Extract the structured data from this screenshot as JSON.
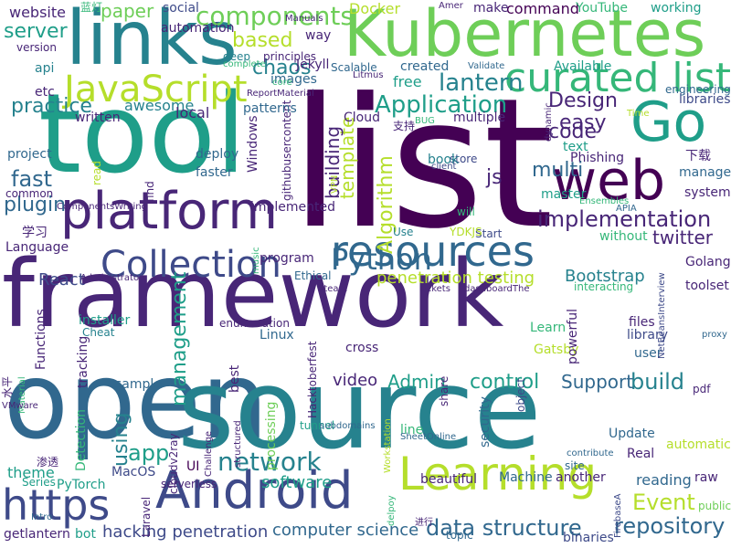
{
  "palette": {
    "dark_purple": "#440154",
    "indigo": "#482677",
    "blue_purple": "#3e4a89",
    "steel_blue": "#31688e",
    "teal": "#26828e",
    "sea_green": "#1f9e89",
    "green": "#35b779",
    "lime_green": "#6ece58",
    "yellow_green": "#b5de2b",
    "yellow": "#fde725"
  },
  "words": [
    {
      "text": "framework",
      "color": "indigo"
    },
    {
      "text": "list",
      "color": "dark_purple"
    },
    {
      "text": "tool",
      "color": "sea_green"
    },
    {
      "text": "open",
      "color": "steel_blue"
    },
    {
      "text": "source",
      "color": "teal"
    },
    {
      "text": "Kubernetes",
      "color": "lime_green"
    },
    {
      "text": "links",
      "color": "teal"
    },
    {
      "text": "web",
      "color": "dark_purple"
    },
    {
      "text": "platform",
      "color": "indigo"
    },
    {
      "text": "Android",
      "color": "blue_purple"
    },
    {
      "text": "resources",
      "color": "steel_blue"
    },
    {
      "text": "Learning",
      "color": "yellow_green"
    },
    {
      "text": "Go",
      "color": "sea_green"
    },
    {
      "text": "curated list",
      "color": "green"
    },
    {
      "text": "JavaScript",
      "color": "yellow_green"
    },
    {
      "text": "https",
      "color": "blue_purple"
    },
    {
      "text": "Collection",
      "color": "blue_purple"
    },
    {
      "text": "Python",
      "color": "steel_blue"
    },
    {
      "text": "Application",
      "color": "sea_green"
    },
    {
      "text": "components",
      "color": "lime_green"
    },
    {
      "text": "lantern",
      "color": "teal"
    },
    {
      "text": "implementation",
      "color": "indigo"
    },
    {
      "text": "network",
      "color": "teal"
    },
    {
      "text": "repository",
      "color": "steel_blue"
    },
    {
      "text": "Event",
      "color": "yellow_green"
    },
    {
      "text": "data structure",
      "color": "steel_blue"
    },
    {
      "text": "build",
      "color": "teal"
    },
    {
      "text": "Design",
      "color": "indigo"
    },
    {
      "text": "server",
      "color": "sea_green"
    },
    {
      "text": "based",
      "color": "yellow_green"
    },
    {
      "text": "chaos",
      "color": "teal"
    },
    {
      "text": "practice",
      "color": "teal"
    },
    {
      "text": "fast",
      "color": "steel_blue"
    },
    {
      "text": "plugin",
      "color": "steel_blue"
    },
    {
      "text": "app",
      "color": "sea_green"
    },
    {
      "text": "Docker",
      "color": "yellow_green"
    },
    {
      "text": "paper",
      "color": "lime_green"
    },
    {
      "text": "code",
      "color": "indigo"
    },
    {
      "text": "multi",
      "color": "steel_blue"
    },
    {
      "text": "easy",
      "color": "indigo"
    },
    {
      "text": "js",
      "color": "indigo"
    },
    {
      "text": "twitter",
      "color": "indigo"
    },
    {
      "text": "control",
      "color": "sea_green"
    },
    {
      "text": "Admin",
      "color": "sea_green"
    },
    {
      "text": "Support",
      "color": "steel_blue"
    },
    {
      "text": "video",
      "color": "indigo"
    },
    {
      "text": "theme",
      "color": "sea_green"
    },
    {
      "text": "computer science",
      "color": "steel_blue"
    },
    {
      "text": "hacking penetration",
      "color": "blue_purple"
    },
    {
      "text": "penetration testing",
      "color": "yellow_green"
    },
    {
      "text": "Bootstrap",
      "color": "teal"
    },
    {
      "text": "React",
      "color": "blue_purple"
    },
    {
      "text": "Algorithm",
      "color": "yellow_green"
    },
    {
      "text": "template",
      "color": "yellow_green"
    },
    {
      "text": "building",
      "color": "indigo"
    },
    {
      "text": "management",
      "color": "sea_green"
    },
    {
      "text": "software",
      "color": "sea_green"
    },
    {
      "text": "using",
      "color": "teal"
    },
    {
      "text": "UI",
      "color": "dark_purple"
    },
    {
      "text": "reading",
      "color": "steel_blue"
    },
    {
      "text": "website",
      "color": "indigo"
    },
    {
      "text": "command",
      "color": "dark_purple"
    },
    {
      "text": "make",
      "color": "indigo"
    },
    {
      "text": "working",
      "color": "sea_green"
    },
    {
      "text": "YouTube",
      "color": "green"
    },
    {
      "text": "social",
      "color": "blue_purple"
    },
    {
      "text": "api",
      "color": "teal"
    },
    {
      "text": "etc",
      "color": "indigo"
    },
    {
      "text": "free",
      "color": "sea_green"
    },
    {
      "text": "awesome",
      "color": "teal"
    },
    {
      "text": "local",
      "color": "indigo"
    },
    {
      "text": "text",
      "color": "sea_green"
    },
    {
      "text": "store",
      "color": "blue_purple"
    },
    {
      "text": "book",
      "color": "teal"
    },
    {
      "text": "Phishing",
      "color": "indigo"
    },
    {
      "text": "下载",
      "color": "indigo"
    },
    {
      "text": "manage",
      "color": "steel_blue"
    },
    {
      "text": "master",
      "color": "sea_green"
    },
    {
      "text": "system",
      "color": "indigo"
    },
    {
      "text": "deploy",
      "color": "steel_blue"
    },
    {
      "text": "faster",
      "color": "steel_blue"
    },
    {
      "text": "Windows",
      "color": "indigo"
    },
    {
      "text": "githubusercontent",
      "color": "indigo"
    },
    {
      "text": "implemented",
      "color": "indigo"
    },
    {
      "text": "libraries",
      "color": "blue_purple"
    },
    {
      "text": "created",
      "color": "steel_blue"
    },
    {
      "text": "Available",
      "color": "sea_green"
    },
    {
      "text": "written",
      "color": "indigo"
    },
    {
      "text": "patterns",
      "color": "steel_blue"
    },
    {
      "text": "multiple",
      "color": "indigo"
    },
    {
      "text": "Cloud",
      "color": "indigo"
    },
    {
      "text": "common",
      "color": "indigo"
    },
    {
      "text": "project",
      "color": "steel_blue"
    },
    {
      "text": "Language",
      "color": "indigo"
    },
    {
      "text": "学习",
      "color": "indigo"
    },
    {
      "text": "PyTorch",
      "color": "sea_green"
    },
    {
      "text": "MacOS",
      "color": "blue_purple"
    },
    {
      "text": "serverless",
      "color": "indigo"
    },
    {
      "text": "Series",
      "color": "sea_green"
    },
    {
      "text": "getlantern",
      "color": "indigo"
    },
    {
      "text": "bot",
      "color": "sea_green"
    },
    {
      "text": "Laravel",
      "color": "indigo"
    },
    {
      "text": "Detection",
      "color": "green"
    },
    {
      "text": "processing",
      "color": "lime_green"
    },
    {
      "text": "Linux",
      "color": "steel_blue"
    },
    {
      "text": "cross",
      "color": "indigo"
    },
    {
      "text": "Learn",
      "color": "green"
    },
    {
      "text": "Gatsby",
      "color": "yellow_green"
    },
    {
      "text": "powerful",
      "color": "indigo"
    },
    {
      "text": "library",
      "color": "blue_purple"
    },
    {
      "text": "files",
      "color": "indigo"
    },
    {
      "text": "user",
      "color": "steel_blue"
    },
    {
      "text": "toolset",
      "color": "indigo"
    },
    {
      "text": "Golang",
      "color": "indigo"
    },
    {
      "text": "proxy",
      "color": "steel_blue"
    },
    {
      "text": "pdf",
      "color": "indigo"
    },
    {
      "text": "Update",
      "color": "steel_blue"
    },
    {
      "text": "site",
      "color": "steel_blue"
    },
    {
      "text": "line",
      "color": "green"
    },
    {
      "text": "security",
      "color": "steel_blue"
    },
    {
      "text": "object",
      "color": "blue_purple"
    },
    {
      "text": "share",
      "color": "indigo"
    },
    {
      "text": "Real",
      "color": "indigo"
    },
    {
      "text": "automatic",
      "color": "yellow_green"
    },
    {
      "text": "Machine",
      "color": "steel_blue"
    },
    {
      "text": "another",
      "color": "indigo"
    },
    {
      "text": "raw",
      "color": "indigo"
    },
    {
      "text": "public",
      "color": "lime_green"
    },
    {
      "text": "beautiful",
      "color": "indigo"
    },
    {
      "text": "binaries",
      "color": "blue_purple"
    },
    {
      "text": "topic",
      "color": "steel_blue"
    },
    {
      "text": "best",
      "color": "indigo"
    },
    {
      "text": "sample",
      "color": "steel_blue"
    },
    {
      "text": "cloudv2ray",
      "color": "indigo"
    },
    {
      "text": "Hacktoberfest",
      "color": "indigo"
    },
    {
      "text": "Functions",
      "color": "indigo"
    },
    {
      "text": "installer",
      "color": "sea_green"
    },
    {
      "text": "Cheat",
      "color": "teal"
    },
    {
      "text": "Ethical",
      "color": "steel_blue"
    },
    {
      "text": "enumeration",
      "color": "indigo"
    },
    {
      "text": "Steam",
      "color": "indigo"
    },
    {
      "text": "tickets",
      "color": "indigo"
    },
    {
      "text": "dashboardThe",
      "color": "indigo"
    },
    {
      "text": "interacting",
      "color": "green"
    },
    {
      "text": "NetBeansInterview",
      "color": "blue_purple"
    },
    {
      "text": "Administrator",
      "color": "indigo"
    },
    {
      "text": "program",
      "color": "indigo"
    },
    {
      "text": "music",
      "color": "green"
    },
    {
      "text": "without",
      "color": "green"
    },
    {
      "text": "Start",
      "color": "blue_purple"
    },
    {
      "text": "will",
      "color": "green"
    },
    {
      "text": "Use",
      "color": "teal"
    },
    {
      "text": "YDKJS",
      "color": "yellow_green"
    },
    {
      "text": "APIA",
      "color": "steel_blue"
    },
    {
      "text": "Ensembles",
      "color": "green"
    },
    {
      "text": "images",
      "color": "steel_blue"
    },
    {
      "text": "deep",
      "color": "teal"
    },
    {
      "text": "principles",
      "color": "indigo"
    },
    {
      "text": "Jekyll",
      "color": "indigo"
    },
    {
      "text": "way",
      "color": "indigo"
    },
    {
      "text": "Scalable",
      "color": "steel_blue"
    },
    {
      "text": "Manuals",
      "color": "indigo"
    },
    {
      "text": "Amer",
      "color": "indigo"
    },
    {
      "text": "蓝灯",
      "color": "green"
    },
    {
      "text": "automation",
      "color": "indigo"
    },
    {
      "text": "version",
      "color": "indigo"
    },
    {
      "text": "complete",
      "color": "green"
    },
    {
      "text": "core",
      "color": "green"
    },
    {
      "text": "Litmus",
      "color": "indigo"
    },
    {
      "text": "Validate",
      "color": "steel_blue"
    },
    {
      "text": "ReportMaterial",
      "color": "indigo"
    },
    {
      "text": "支持",
      "color": "indigo"
    },
    {
      "text": "BUG",
      "color": "green"
    },
    {
      "text": "dynamic",
      "color": "indigo"
    },
    {
      "text": "Time",
      "color": "yellow_green"
    },
    {
      "text": "engineering",
      "color": "steel_blue"
    },
    {
      "text": "read",
      "color": "yellow_green"
    },
    {
      "text": "find",
      "color": "indigo"
    },
    {
      "text": "VPN",
      "color": "yellow_green"
    },
    {
      "text": "client",
      "color": "blue_purple"
    },
    {
      "text": "ComponentsWriting",
      "color": "indigo"
    },
    {
      "text": "水平",
      "color": "indigo"
    },
    {
      "text": "Material",
      "color": "green"
    },
    {
      "text": "tracking",
      "color": "indigo"
    },
    {
      "text": "VMware",
      "color": "indigo"
    },
    {
      "text": "渗透",
      "color": "indigo"
    },
    {
      "text": "Intro",
      "color": "steel_blue"
    },
    {
      "text": "structured",
      "color": "indigo"
    },
    {
      "text": "Challenge",
      "color": "indigo"
    },
    {
      "text": "tunnel",
      "color": "sea_green"
    },
    {
      "text": "subdomains",
      "color": "steel_blue"
    },
    {
      "text": "Workstation",
      "color": "yellow_green"
    },
    {
      "text": "SheetOnline",
      "color": "steel_blue"
    },
    {
      "text": "contribute",
      "color": "steel_blue"
    },
    {
      "text": "delpoy",
      "color": "green"
    },
    {
      "text": "进行",
      "color": "indigo"
    },
    {
      "text": "FirebaseA",
      "color": "blue_purple"
    },
    {
      "text": "实现",
      "color": "indigo"
    },
    {
      "text": "access",
      "color": "yellow_green"
    },
    {
      "text": "running",
      "color": "green"
    },
    {
      "text": "restrictions",
      "color": "indigo"
    }
  ]
}
